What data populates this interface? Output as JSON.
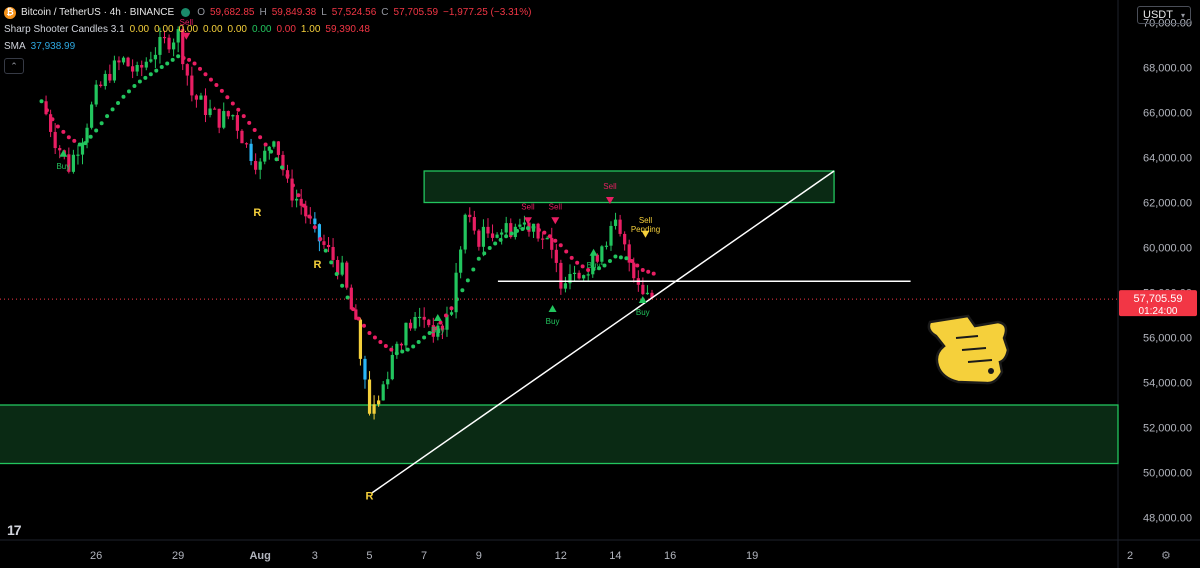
{
  "header": {
    "symbol": "Bitcoin / TetherUS · 4h · BINANCE",
    "ohlc": {
      "o_label": "O",
      "o": "59,682.85",
      "h_label": "H",
      "h": "59,849.38",
      "l_label": "L",
      "l": "57,524.56",
      "c_label": "C",
      "c": "57,705.59",
      "change": "−1,977.25 (−3.31%)"
    },
    "indicator1": {
      "name": "Sharp Shooter Candles 3.1",
      "values": [
        "0.00",
        "0.00",
        "0.00",
        "0.00",
        "0.00",
        "0.00",
        "0.00",
        "1.00",
        "59,390.48"
      ]
    },
    "indicator2": {
      "name": "SMA",
      "value": "37,938.99"
    }
  },
  "currency": "USDT",
  "price_label": {
    "price": "57,705.59",
    "countdown": "01:24:00"
  },
  "colors": {
    "up": "#22c55e",
    "down": "#e91e63",
    "yellow": "#f5d03b",
    "cyan": "#29b6f6",
    "zone_border": "#22c55e",
    "zone_fill": "#0a2a14",
    "line": "#ffffff",
    "price_line": "#f23645"
  },
  "icons": {
    "logo": "tradingview-logo-icon",
    "settings": "gear-icon",
    "hand": "pointing-hand-icon",
    "coin": "bitcoin-coin-icon"
  },
  "chart_data": {
    "type": "candlestick",
    "y_axis": {
      "range": [
        47000,
        71000
      ],
      "ticks": [
        "48,000.00",
        "50,000.00",
        "52,000.00",
        "54,000.00",
        "56,000.00",
        "58,000.00",
        "60,000.00",
        "62,000.00",
        "64,000.00",
        "66,000.00",
        "68,000.00",
        "70,000.00"
      ]
    },
    "x_axis": {
      "range_days": [
        "Jul 24",
        "Sep 2"
      ],
      "ticks": [
        {
          "label": "26",
          "day": 2
        },
        {
          "label": "29",
          "day": 5
        },
        {
          "label": "Aug",
          "day": 8
        },
        {
          "label": "3",
          "day": 10
        },
        {
          "label": "5",
          "day": 12
        },
        {
          "label": "7",
          "day": 14
        },
        {
          "label": "9",
          "day": 16
        },
        {
          "label": "12",
          "day": 19
        },
        {
          "label": "14",
          "day": 21
        },
        {
          "label": "16",
          "day": 23
        },
        {
          "label": "19",
          "day": 26
        },
        {
          "label": "2",
          "day": 28
        }
      ]
    },
    "series": [
      {
        "name": "BTC/USDT 4h",
        "close_path": [
          [
            0,
            66500
          ],
          [
            0.5,
            64800
          ],
          [
            1,
            63600
          ],
          [
            1.5,
            65000
          ],
          [
            2,
            66800
          ],
          [
            2.5,
            67800
          ],
          [
            3,
            68300
          ],
          [
            3.5,
            67700
          ],
          [
            4,
            68600
          ],
          [
            4.5,
            69100
          ],
          [
            5,
            69500
          ],
          [
            5.5,
            66800
          ],
          [
            6,
            66200
          ],
          [
            6.5,
            65700
          ],
          [
            7,
            65900
          ],
          [
            7.5,
            64500
          ],
          [
            8,
            63600
          ],
          [
            8.5,
            65100
          ],
          [
            9,
            62700
          ],
          [
            9.5,
            61900
          ],
          [
            10,
            60600
          ],
          [
            10.5,
            59800
          ],
          [
            11,
            58900
          ],
          [
            11.5,
            56400
          ],
          [
            12,
            52700
          ],
          [
            12.5,
            53900
          ],
          [
            13,
            55800
          ],
          [
            13.5,
            56600
          ],
          [
            14,
            56900
          ],
          [
            14.5,
            56100
          ],
          [
            15,
            57300
          ],
          [
            15.5,
            61400
          ],
          [
            16,
            60400
          ],
          [
            16.5,
            60800
          ],
          [
            17,
            60800
          ],
          [
            17.5,
            61000
          ],
          [
            18,
            61100
          ],
          [
            18.5,
            60100
          ],
          [
            19,
            58600
          ],
          [
            19.5,
            59200
          ],
          [
            20,
            58800
          ],
          [
            20.5,
            60200
          ],
          [
            21,
            60900
          ],
          [
            21.5,
            59400
          ],
          [
            22,
            58200
          ],
          [
            22.5,
            57700
          ]
        ]
      },
      {
        "name": "trailing stop",
        "dots": [
          [
            0,
            66500
          ],
          [
            0.5,
            65500
          ],
          [
            1,
            64900
          ],
          [
            1.5,
            64500
          ],
          [
            2,
            65200
          ],
          [
            2.5,
            66000
          ],
          [
            3,
            66700
          ],
          [
            3.5,
            67300
          ],
          [
            4,
            67700
          ],
          [
            4.5,
            68100
          ],
          [
            5,
            68500
          ],
          [
            5.5,
            68300
          ],
          [
            6,
            67700
          ],
          [
            6.5,
            67100
          ],
          [
            7,
            66400
          ],
          [
            7.5,
            65700
          ],
          [
            8,
            64900
          ],
          [
            8.5,
            64100
          ],
          [
            9,
            63200
          ],
          [
            9.5,
            62100
          ],
          [
            10,
            60900
          ],
          [
            10.5,
            59600
          ],
          [
            11,
            58300
          ],
          [
            11.5,
            57000
          ],
          [
            12,
            56200
          ],
          [
            12.5,
            55700
          ],
          [
            13,
            55300
          ],
          [
            13.5,
            55500
          ],
          [
            14,
            56000
          ],
          [
            14.5,
            56500
          ],
          [
            15,
            57300
          ],
          [
            15.5,
            58300
          ],
          [
            16,
            59500
          ],
          [
            16.5,
            60100
          ],
          [
            17,
            60500
          ],
          [
            17.5,
            60800
          ],
          [
            18,
            60900
          ],
          [
            18.5,
            60600
          ],
          [
            19,
            60100
          ],
          [
            19.5,
            59400
          ],
          [
            20,
            59000
          ],
          [
            20.5,
            59100
          ],
          [
            21,
            59600
          ],
          [
            21.5,
            59500
          ],
          [
            22,
            59000
          ],
          [
            22.5,
            58800
          ]
        ]
      }
    ],
    "zones": [
      {
        "name": "supply zone",
        "y": [
          62000,
          63400
        ],
        "x_days": [
          14,
          29
        ]
      },
      {
        "name": "demand zone",
        "y": [
          50400,
          53000
        ]
      }
    ],
    "lines": [
      {
        "name": "trendline",
        "from": [
          12.1,
          49100
        ],
        "to": [
          29,
          63400
        ]
      },
      {
        "name": "support line",
        "from": [
          16.7,
          58500
        ],
        "to": [
          31.8,
          58500
        ]
      },
      {
        "name": "last price line",
        "y": 57705.59
      }
    ],
    "signals": [
      {
        "label": "Buy",
        "day": 0.8,
        "price": 63500,
        "kind": "buy"
      },
      {
        "label": "Sell",
        "day": 5.3,
        "price": 69900,
        "kind": "sell"
      },
      {
        "label": "R",
        "day": 7.9,
        "price": 61400,
        "kind": "r"
      },
      {
        "label": "R",
        "day": 10.1,
        "price": 59100,
        "kind": "r"
      },
      {
        "label": "R",
        "day": 12.0,
        "price": 48800,
        "kind": "r"
      },
      {
        "label": "Buy",
        "day": 14.5,
        "price": 56200,
        "kind": "buy"
      },
      {
        "label": "Sell",
        "day": 17.8,
        "price": 61700,
        "kind": "sell"
      },
      {
        "label": "Sell",
        "day": 18.8,
        "price": 61700,
        "kind": "sell"
      },
      {
        "label": "Buy",
        "day": 18.7,
        "price": 56600,
        "kind": "buy"
      },
      {
        "label": "Buy",
        "day": 20.2,
        "price": 59100,
        "kind": "buy"
      },
      {
        "label": "Sell",
        "day": 20.8,
        "price": 62600,
        "kind": "sell"
      },
      {
        "label": "Buy",
        "day": 22.0,
        "price": 57000,
        "kind": "buy"
      },
      {
        "label": "Sell",
        "day": 22.1,
        "price": 61100,
        "kind": "sell"
      },
      {
        "label": "Pending",
        "day": 22.1,
        "price": 60700,
        "kind": "sell"
      }
    ]
  }
}
